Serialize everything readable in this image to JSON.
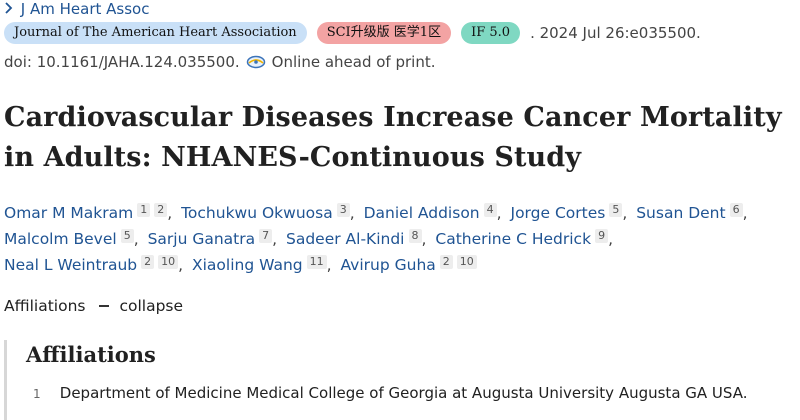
{
  "journal": {
    "name": "J Am Heart Assoc"
  },
  "badges": {
    "journal_full": "Journal of The American Heart Association",
    "sci": "SCI升级版 医学1区",
    "impact": "IF 5.0"
  },
  "citation": {
    "date_text": ". 2024 Jul 26:e035500."
  },
  "doi": {
    "text": "doi: 10.1161/JAHA.124.035500.",
    "status": "Online ahead of print."
  },
  "article": {
    "title": "Cardiovascular Diseases Increase Cancer Mortality in Adults: NHANES-Continuous Study"
  },
  "authors": [
    {
      "name": "Omar M Makram",
      "affs": [
        "1",
        "2"
      ]
    },
    {
      "name": "Tochukwu Okwuosa",
      "affs": [
        "3"
      ]
    },
    {
      "name": "Daniel Addison",
      "affs": [
        "4"
      ]
    },
    {
      "name": "Jorge Cortes",
      "affs": [
        "5"
      ]
    },
    {
      "name": "Susan Dent",
      "affs": [
        "6"
      ]
    },
    {
      "name": "Malcolm Bevel",
      "affs": [
        "5"
      ]
    },
    {
      "name": "Sarju Ganatra",
      "affs": [
        "7"
      ]
    },
    {
      "name": "Sadeer Al-Kindi",
      "affs": [
        "8"
      ]
    },
    {
      "name": "Catherine C Hedrick",
      "affs": [
        "9"
      ]
    },
    {
      "name": "Neal L Weintraub",
      "affs": [
        "2",
        "10"
      ]
    },
    {
      "name": "Xiaoling Wang",
      "affs": [
        "11"
      ]
    },
    {
      "name": "Avirup Guha",
      "affs": [
        "2",
        "10"
      ]
    }
  ],
  "affiliations_toggle": {
    "label": "Affiliations",
    "action": "collapse"
  },
  "affiliations": {
    "heading": "Affiliations",
    "items": [
      {
        "num": "1",
        "text": "Department of Medicine Medical College of Georgia at Augusta University Augusta GA USA."
      }
    ]
  },
  "colors": {
    "link": "#205493",
    "journal_badge": "#c9e0f7",
    "sci_badge": "#f3a3a3",
    "if_badge": "#7fd8c2"
  },
  "icons": {
    "journal_link": "chevron-right-icon",
    "eprint": "eprint-icon"
  }
}
